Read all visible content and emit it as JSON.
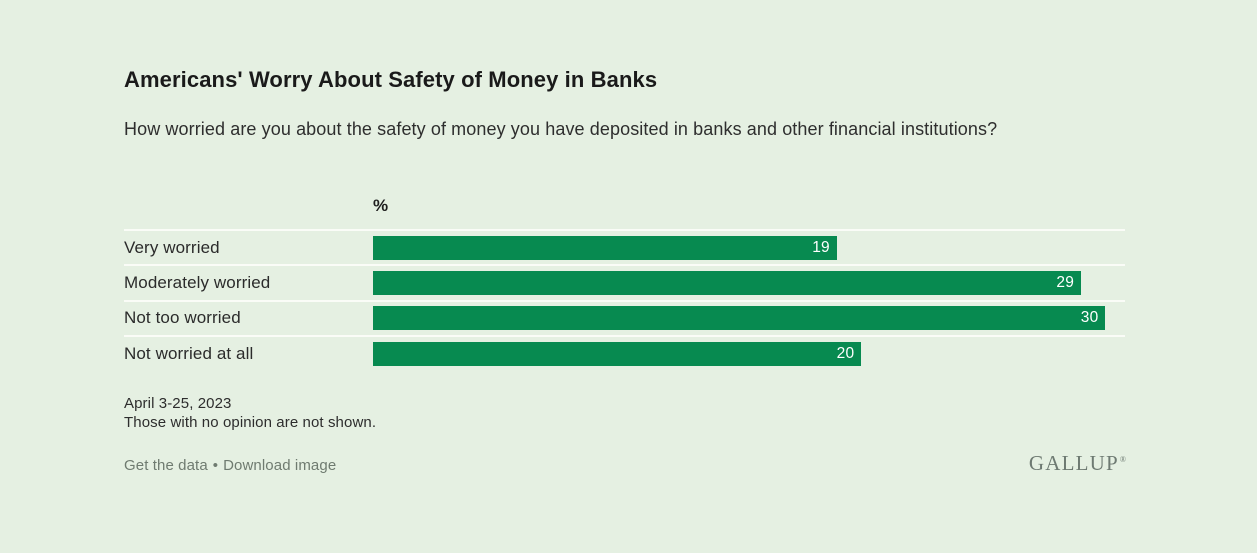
{
  "chart_data": {
    "type": "bar",
    "orientation": "horizontal",
    "title": "Americans' Worry About Safety of Money in Banks",
    "subtitle": "How worried are you about the safety of money you have deposited in banks and other financial institutions?",
    "unit_label": "%",
    "categories": [
      "Very worried",
      "Moderately worried",
      "Not too worried",
      "Not worried at all"
    ],
    "values": [
      19,
      29,
      30,
      20
    ],
    "xlim": [
      0,
      30.8
    ],
    "grid": false,
    "legend": "none",
    "value_labels": "inside-end"
  },
  "footnotes": {
    "date": "April 3-25, 2023",
    "note": "Those with no opinion are not shown."
  },
  "links": {
    "get_data": "Get the data",
    "separator": "•",
    "download": "Download image"
  },
  "brand": {
    "logo_text": "GALLUP",
    "trademark": "®"
  },
  "colors": {
    "page_background": "#e5f0e2",
    "row_separator": "#fafcf7",
    "bar_green": "#078a50",
    "value_label_text": "#ffffff",
    "title_text": "#1a1a1a",
    "body_text": "#2d2d2d",
    "link_text": "#6f7b70",
    "logo_text": "#6e7a72"
  }
}
